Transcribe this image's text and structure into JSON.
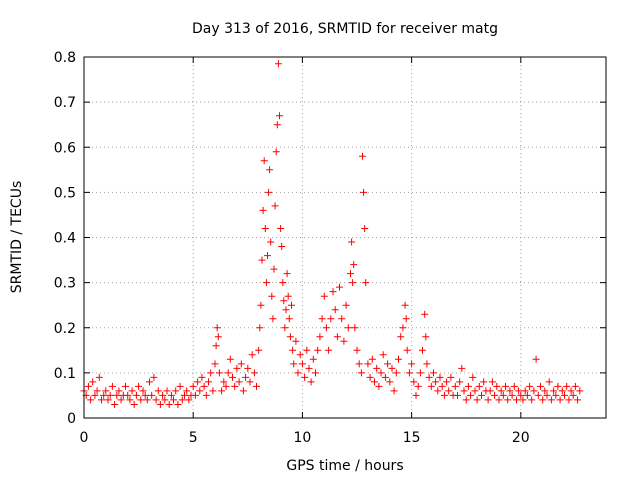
{
  "chart_data": {
    "type": "scatter",
    "title": "Day 313 of 2016, SRMTID for receiver matg",
    "xlabel": "GPS time / hours",
    "ylabel": "SRMTID / TECUs",
    "xlim": [
      0,
      23.9
    ],
    "ylim": [
      0,
      0.8
    ],
    "xticks": [
      0,
      5,
      10,
      15,
      20
    ],
    "yticks": [
      0,
      0.1,
      0.2,
      0.3,
      0.4,
      0.5,
      0.6,
      0.7,
      0.8
    ],
    "xtick_labels": [
      "0",
      "5",
      "10",
      "15",
      "20"
    ],
    "ytick_labels": [
      "0",
      "0.1",
      "0.2",
      "0.3",
      "0.4",
      "0.5",
      "0.6",
      "0.7",
      "0.8"
    ],
    "grid": true,
    "marker": "+",
    "color": "#ff0000",
    "series": [
      {
        "name": "SRMTID",
        "points": [
          [
            0.0,
            0.06
          ],
          [
            0.1,
            0.05
          ],
          [
            0.2,
            0.07
          ],
          [
            0.3,
            0.04
          ],
          [
            0.4,
            0.08
          ],
          [
            0.5,
            0.05
          ],
          [
            0.6,
            0.06
          ],
          [
            0.7,
            0.09
          ],
          [
            0.8,
            0.04
          ],
          [
            0.9,
            0.05
          ],
          [
            1.0,
            0.06
          ],
          [
            1.1,
            0.04
          ],
          [
            1.2,
            0.05
          ],
          [
            1.3,
            0.07
          ],
          [
            1.4,
            0.03
          ],
          [
            1.5,
            0.05
          ],
          [
            1.6,
            0.06
          ],
          [
            1.7,
            0.04
          ],
          [
            1.8,
            0.05
          ],
          [
            1.9,
            0.07
          ],
          [
            2.0,
            0.05
          ],
          [
            2.1,
            0.04
          ],
          [
            2.2,
            0.06
          ],
          [
            2.3,
            0.03
          ],
          [
            2.4,
            0.05
          ],
          [
            2.5,
            0.07
          ],
          [
            2.6,
            0.04
          ],
          [
            2.7,
            0.06
          ],
          [
            2.8,
            0.05
          ],
          [
            2.9,
            0.04
          ],
          [
            3.0,
            0.08
          ],
          [
            3.1,
            0.05
          ],
          [
            3.2,
            0.09
          ],
          [
            3.3,
            0.04
          ],
          [
            3.4,
            0.06
          ],
          [
            3.5,
            0.03
          ],
          [
            3.6,
            0.05
          ],
          [
            3.7,
            0.04
          ],
          [
            3.8,
            0.06
          ],
          [
            3.9,
            0.03
          ],
          [
            4.0,
            0.05
          ],
          [
            4.1,
            0.04
          ],
          [
            4.2,
            0.06
          ],
          [
            4.3,
            0.03
          ],
          [
            4.4,
            0.07
          ],
          [
            4.5,
            0.04
          ],
          [
            4.6,
            0.05
          ],
          [
            4.7,
            0.06
          ],
          [
            4.8,
            0.04
          ],
          [
            4.9,
            0.05
          ],
          [
            5.0,
            0.07
          ],
          [
            5.1,
            0.05
          ],
          [
            5.2,
            0.08
          ],
          [
            5.3,
            0.06
          ],
          [
            5.4,
            0.09
          ],
          [
            5.5,
            0.07
          ],
          [
            5.6,
            0.05
          ],
          [
            5.7,
            0.08
          ],
          [
            5.8,
            0.1
          ],
          [
            5.9,
            0.06
          ],
          [
            6.0,
            0.12
          ],
          [
            6.05,
            0.16
          ],
          [
            6.1,
            0.2
          ],
          [
            6.15,
            0.18
          ],
          [
            6.2,
            0.1
          ],
          [
            6.3,
            0.06
          ],
          [
            6.4,
            0.08
          ],
          [
            6.5,
            0.07
          ],
          [
            6.6,
            0.1
          ],
          [
            6.7,
            0.13
          ],
          [
            6.8,
            0.09
          ],
          [
            6.9,
            0.07
          ],
          [
            7.0,
            0.11
          ],
          [
            7.1,
            0.08
          ],
          [
            7.2,
            0.12
          ],
          [
            7.3,
            0.06
          ],
          [
            7.4,
            0.09
          ],
          [
            7.5,
            0.11
          ],
          [
            7.6,
            0.08
          ],
          [
            7.7,
            0.14
          ],
          [
            7.8,
            0.1
          ],
          [
            7.9,
            0.07
          ],
          [
            8.0,
            0.15
          ],
          [
            8.05,
            0.2
          ],
          [
            8.1,
            0.25
          ],
          [
            8.15,
            0.35
          ],
          [
            8.2,
            0.46
          ],
          [
            8.25,
            0.57
          ],
          [
            8.3,
            0.42
          ],
          [
            8.35,
            0.3
          ],
          [
            8.4,
            0.36
          ],
          [
            8.45,
            0.5
          ],
          [
            8.5,
            0.55
          ],
          [
            8.55,
            0.39
          ],
          [
            8.6,
            0.27
          ],
          [
            8.65,
            0.22
          ],
          [
            8.7,
            0.33
          ],
          [
            8.75,
            0.47
          ],
          [
            8.8,
            0.59
          ],
          [
            8.85,
            0.65
          ],
          [
            8.9,
            0.785
          ],
          [
            8.95,
            0.67
          ],
          [
            9.0,
            0.42
          ],
          [
            9.05,
            0.38
          ],
          [
            9.1,
            0.3
          ],
          [
            9.15,
            0.26
          ],
          [
            9.2,
            0.2
          ],
          [
            9.25,
            0.24
          ],
          [
            9.3,
            0.32
          ],
          [
            9.35,
            0.27
          ],
          [
            9.4,
            0.22
          ],
          [
            9.45,
            0.18
          ],
          [
            9.5,
            0.25
          ],
          [
            9.55,
            0.15
          ],
          [
            9.6,
            0.12
          ],
          [
            9.7,
            0.17
          ],
          [
            9.8,
            0.1
          ],
          [
            9.9,
            0.14
          ],
          [
            10.0,
            0.12
          ],
          [
            10.1,
            0.09
          ],
          [
            10.2,
            0.15
          ],
          [
            10.3,
            0.11
          ],
          [
            10.4,
            0.08
          ],
          [
            10.5,
            0.13
          ],
          [
            10.6,
            0.1
          ],
          [
            10.7,
            0.15
          ],
          [
            10.8,
            0.18
          ],
          [
            10.9,
            0.22
          ],
          [
            11.0,
            0.27
          ],
          [
            11.1,
            0.2
          ],
          [
            11.2,
            0.15
          ],
          [
            11.3,
            0.22
          ],
          [
            11.4,
            0.28
          ],
          [
            11.5,
            0.24
          ],
          [
            11.6,
            0.18
          ],
          [
            11.7,
            0.29
          ],
          [
            11.8,
            0.22
          ],
          [
            11.9,
            0.17
          ],
          [
            12.0,
            0.25
          ],
          [
            12.1,
            0.2
          ],
          [
            12.2,
            0.32
          ],
          [
            12.25,
            0.39
          ],
          [
            12.3,
            0.3
          ],
          [
            12.35,
            0.34
          ],
          [
            12.4,
            0.2
          ],
          [
            12.5,
            0.15
          ],
          [
            12.6,
            0.12
          ],
          [
            12.7,
            0.1
          ],
          [
            12.75,
            0.58
          ],
          [
            12.8,
            0.5
          ],
          [
            12.85,
            0.42
          ],
          [
            12.9,
            0.3
          ],
          [
            13.0,
            0.12
          ],
          [
            13.1,
            0.09
          ],
          [
            13.2,
            0.13
          ],
          [
            13.3,
            0.08
          ],
          [
            13.4,
            0.11
          ],
          [
            13.5,
            0.07
          ],
          [
            13.6,
            0.1
          ],
          [
            13.7,
            0.14
          ],
          [
            13.8,
            0.09
          ],
          [
            13.9,
            0.12
          ],
          [
            14.0,
            0.08
          ],
          [
            14.1,
            0.11
          ],
          [
            14.2,
            0.06
          ],
          [
            14.3,
            0.1
          ],
          [
            14.4,
            0.13
          ],
          [
            14.5,
            0.18
          ],
          [
            14.6,
            0.2
          ],
          [
            14.7,
            0.25
          ],
          [
            14.75,
            0.22
          ],
          [
            14.8,
            0.15
          ],
          [
            14.9,
            0.1
          ],
          [
            15.0,
            0.12
          ],
          [
            15.1,
            0.08
          ],
          [
            15.2,
            0.05
          ],
          [
            15.3,
            0.07
          ],
          [
            15.4,
            0.1
          ],
          [
            15.5,
            0.15
          ],
          [
            15.6,
            0.23
          ],
          [
            15.65,
            0.18
          ],
          [
            15.7,
            0.12
          ],
          [
            15.8,
            0.09
          ],
          [
            15.9,
            0.07
          ],
          [
            16.0,
            0.1
          ],
          [
            16.1,
            0.08
          ],
          [
            16.2,
            0.06
          ],
          [
            16.3,
            0.09
          ],
          [
            16.4,
            0.07
          ],
          [
            16.5,
            0.05
          ],
          [
            16.6,
            0.08
          ],
          [
            16.7,
            0.06
          ],
          [
            16.8,
            0.09
          ],
          [
            16.9,
            0.05
          ],
          [
            17.0,
            0.07
          ],
          [
            17.1,
            0.05
          ],
          [
            17.2,
            0.08
          ],
          [
            17.3,
            0.11
          ],
          [
            17.4,
            0.06
          ],
          [
            17.5,
            0.04
          ],
          [
            17.6,
            0.07
          ],
          [
            17.7,
            0.05
          ],
          [
            17.8,
            0.09
          ],
          [
            17.9,
            0.06
          ],
          [
            18.0,
            0.04
          ],
          [
            18.1,
            0.07
          ],
          [
            18.2,
            0.05
          ],
          [
            18.3,
            0.08
          ],
          [
            18.4,
            0.06
          ],
          [
            18.5,
            0.04
          ],
          [
            18.6,
            0.06
          ],
          [
            18.7,
            0.08
          ],
          [
            18.8,
            0.05
          ],
          [
            18.9,
            0.07
          ],
          [
            19.0,
            0.04
          ],
          [
            19.1,
            0.06
          ],
          [
            19.2,
            0.05
          ],
          [
            19.3,
            0.07
          ],
          [
            19.4,
            0.04
          ],
          [
            19.5,
            0.06
          ],
          [
            19.6,
            0.05
          ],
          [
            19.7,
            0.07
          ],
          [
            19.8,
            0.04
          ],
          [
            19.9,
            0.06
          ],
          [
            20.0,
            0.05
          ],
          [
            20.1,
            0.04
          ],
          [
            20.2,
            0.06
          ],
          [
            20.3,
            0.05
          ],
          [
            20.4,
            0.07
          ],
          [
            20.5,
            0.04
          ],
          [
            20.6,
            0.06
          ],
          [
            20.7,
            0.13
          ],
          [
            20.8,
            0.05
          ],
          [
            20.9,
            0.07
          ],
          [
            21.0,
            0.04
          ],
          [
            21.1,
            0.06
          ],
          [
            21.2,
            0.05
          ],
          [
            21.3,
            0.08
          ],
          [
            21.4,
            0.04
          ],
          [
            21.5,
            0.06
          ],
          [
            21.6,
            0.05
          ],
          [
            21.7,
            0.07
          ],
          [
            21.8,
            0.04
          ],
          [
            21.9,
            0.06
          ],
          [
            22.0,
            0.05
          ],
          [
            22.1,
            0.07
          ],
          [
            22.2,
            0.04
          ],
          [
            22.3,
            0.06
          ],
          [
            22.4,
            0.05
          ],
          [
            22.5,
            0.07
          ],
          [
            22.6,
            0.04
          ],
          [
            22.7,
            0.06
          ]
        ]
      }
    ]
  }
}
